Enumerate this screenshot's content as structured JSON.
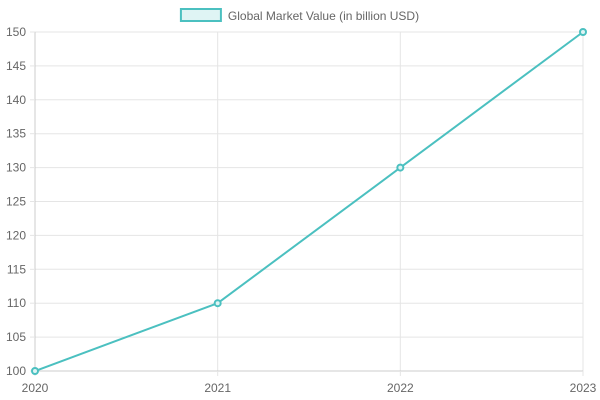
{
  "chart_data": {
    "type": "line",
    "x": [
      "2020",
      "2021",
      "2022",
      "2023"
    ],
    "series": [
      {
        "name": "Global Market Value (in billion USD)",
        "values": [
          100,
          110,
          130,
          150
        ],
        "color": "#4bc0c0",
        "fill": "#dff4f4"
      }
    ],
    "yticks": [
      "100",
      "105",
      "110",
      "115",
      "120",
      "125",
      "130",
      "135",
      "140",
      "145",
      "150"
    ],
    "ylim": [
      100,
      150
    ],
    "grid": true,
    "legend": "top-center",
    "grid_color": "#e5e5e5",
    "axis_color": "#cccccc",
    "text_color": "#666666"
  }
}
